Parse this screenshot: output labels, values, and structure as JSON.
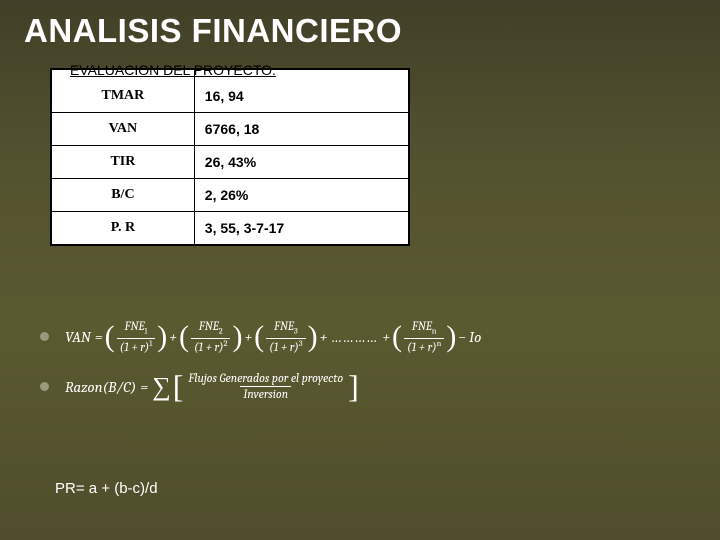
{
  "title": "ANALISIS FINANCIERO",
  "subtitle": "EVALUACION DEL PROYECTO.",
  "table": {
    "rows": [
      {
        "label": "TMAR",
        "value": "16, 94"
      },
      {
        "label": "VAN",
        "value": "6766, 18"
      },
      {
        "label": "TIR",
        "value": "26, 43%"
      },
      {
        "label": "B/C",
        "value": "2, 26%"
      },
      {
        "label": "P. R",
        "value": "3, 55, 3-7-17"
      }
    ]
  },
  "formulas": {
    "van": {
      "lhs": "VAN",
      "terms": [
        {
          "num": "FNE",
          "numSub": "1",
          "denBase": "(1 + r)",
          "denExp": "1"
        },
        {
          "num": "FNE",
          "numSub": "2",
          "denBase": "(1 + r)",
          "denExp": "2"
        },
        {
          "num": "FNE",
          "numSub": "3",
          "denBase": "(1 + r)",
          "denExp": "3"
        }
      ],
      "dots": "…………",
      "lastTerm": {
        "num": "FNE",
        "numSub": "n",
        "denBase": "(1 + r)",
        "denExp": "n"
      },
      "tail": "− Io"
    },
    "bc": {
      "lhs": "Razon(B/C)",
      "num": "Flujos Generados por el proyecto",
      "den": "Inversion"
    },
    "pr": "PR= a + (b-c)/d"
  },
  "colors": {
    "text": "#ffffff",
    "tableBg": "#ffffff",
    "tableBorder": "#000000"
  }
}
